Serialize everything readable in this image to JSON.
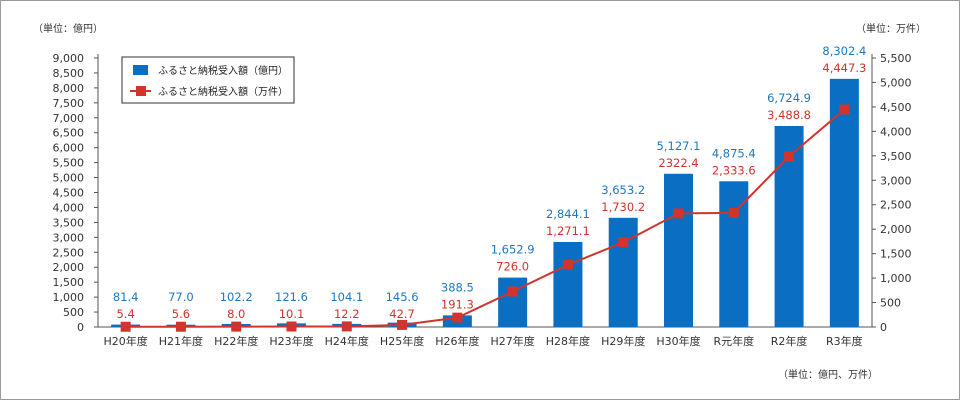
{
  "unit_left": "（単位：億円）",
  "unit_right": "（単位：万件）",
  "unit_bottom": "（単位：億円、万件）",
  "colors": {
    "bar": "#0a6fc2",
    "line": "#d0342c",
    "bar_label": "#1f77c2",
    "line_label": "#d0342c"
  },
  "chart_data": {
    "type": "bar",
    "categories": [
      "H20年度",
      "H21年度",
      "H22年度",
      "H23年度",
      "H24年度",
      "H25年度",
      "H26年度",
      "H27年度",
      "H28年度",
      "H29年度",
      "H30年度",
      "R元年度",
      "R2年度",
      "R3年度"
    ],
    "series": [
      {
        "name": "ふるさと納税受入額（億円）",
        "type": "bar",
        "axis": "left",
        "values": [
          81.4,
          77.0,
          102.2,
          121.6,
          104.1,
          145.6,
          388.5,
          1652.9,
          2844.1,
          3653.2,
          5127.1,
          4875.4,
          6724.9,
          8302.4
        ],
        "labels": [
          "81.4",
          "77.0",
          "102.2",
          "121.6",
          "104.1",
          "145.6",
          "388.5",
          "1,652.9",
          "2,844.1",
          "3,653.2",
          "5,127.1",
          "4,875.4",
          "6,724.9",
          "8,302.4"
        ]
      },
      {
        "name": "ふるさと納税受入額（万件）",
        "type": "line",
        "axis": "right",
        "values": [
          5.4,
          5.6,
          8.0,
          10.1,
          12.2,
          42.7,
          191.3,
          726.0,
          1271.1,
          1730.2,
          2322.4,
          2333.6,
          3488.8,
          4447.3
        ],
        "labels": [
          "5.4",
          "5.6",
          "8.0",
          "10.1",
          "12.2",
          "42.7",
          "191.3",
          "726.0",
          "1,271.1",
          "1,730.2",
          "2322.4",
          "2,333.6",
          "3,488.8",
          "4,447.3"
        ]
      }
    ],
    "y_left": {
      "min": 0,
      "max": 9000,
      "step": 500,
      "ticks": [
        "0",
        "500",
        "1,000",
        "1,500",
        "2,000",
        "2,500",
        "3,000",
        "3,500",
        "4,000",
        "4,500",
        "5,000",
        "5,500",
        "6,000",
        "6,500",
        "7,000",
        "7,500",
        "8,000",
        "8,500",
        "9,000"
      ]
    },
    "y_right": {
      "min": 0,
      "max": 5500,
      "step": 500,
      "ticks": [
        "0",
        "500",
        "1,000",
        "1,500",
        "2,000",
        "2,500",
        "3,000",
        "3,500",
        "4,000",
        "4,500",
        "5,000",
        "5,500"
      ]
    },
    "grid": false,
    "legend_position": "top-left"
  }
}
